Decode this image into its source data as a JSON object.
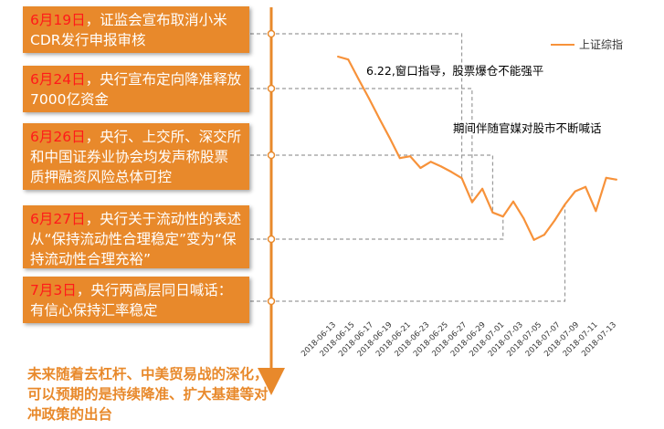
{
  "events": [
    {
      "date": "6月19日",
      "text": "，证监会宣布取消小米CDR发行申报审核"
    },
    {
      "date": "6月24日",
      "text": "，央行宣布定向降准释放7000亿资金"
    },
    {
      "date": "6月26日",
      "text": "，央行、上交所、深交所和中国证券业协会均发声称股票质押融资风险总体可控"
    },
    {
      "date": "6月27日",
      "text": "，央行关于流动性的表述从“保持流动性合理稳定”变为“保持流动性合理充裕”"
    },
    {
      "date": "7月3日",
      "text": "，央行两高层同日喊话：有信心保持汇率稳定"
    }
  ],
  "annotations": {
    "note1": "6.22,窗口指导，股票爆仓不能强平",
    "note2": "期间伴随官媒对股市不断喊话"
  },
  "conclusion": "未来随着去杠杆、中美贸易战的深化，可以预期的是持续降准、扩大基建等对冲政策的出台",
  "chart_data": {
    "type": "line",
    "series": [
      {
        "name": "上证综指",
        "color": "#f7923a",
        "values": [
          2990,
          2982,
          2928,
          2876,
          2821,
          2768,
          2712,
          2717,
          2685,
          2702,
          2689,
          2674,
          2657,
          2591,
          2628,
          2563,
          2552,
          2593,
          2547,
          2488,
          2502,
          2541,
          2585,
          2621,
          2633,
          2567,
          2658,
          2653
        ]
      }
    ],
    "ylim": [
      2450,
      3050
    ],
    "x_tick_labels": [
      "2018-06-13",
      "2018-06-15",
      "2018-06-17",
      "2018-06-19",
      "2018-06-21",
      "2018-06-23",
      "2018-06-25",
      "2018-06-27",
      "2018-06-29",
      "2018-07-01",
      "2018-07-03",
      "2018-07-05",
      "2018-07-07",
      "2018-07-09",
      "2018-07-11",
      "2018-07-13"
    ],
    "legend": "top-right"
  }
}
